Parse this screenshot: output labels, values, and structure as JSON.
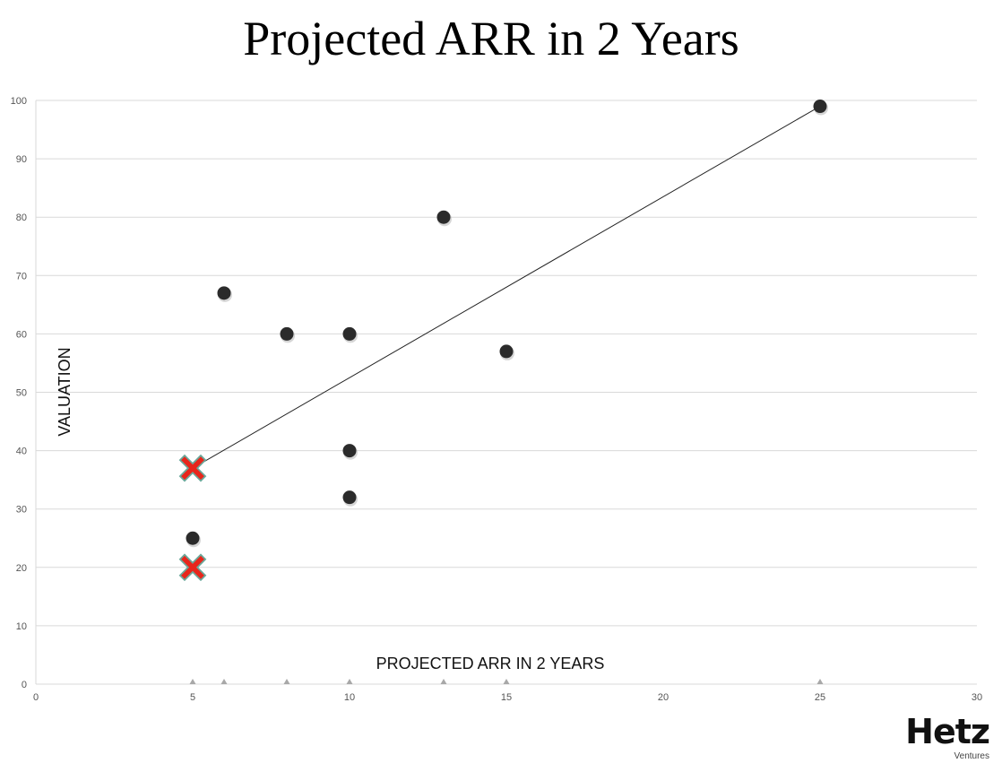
{
  "chart_data": {
    "type": "scatter",
    "title": "Projected ARR in 2 Years",
    "xlabel": "PROJECTED ARR IN 2 YEARS",
    "ylabel": "VALUATION",
    "xlim": [
      0,
      30
    ],
    "ylim": [
      0,
      100
    ],
    "x_ticks": [
      0,
      5,
      10,
      15,
      20,
      25,
      30
    ],
    "y_ticks": [
      0,
      10,
      20,
      30,
      40,
      50,
      60,
      70,
      80,
      90,
      100
    ],
    "grid": "horizontal",
    "points": [
      {
        "x": 6,
        "y": 67,
        "marker": "dot"
      },
      {
        "x": 8,
        "y": 60,
        "marker": "dot"
      },
      {
        "x": 10,
        "y": 60,
        "marker": "dot"
      },
      {
        "x": 13,
        "y": 80,
        "marker": "dot"
      },
      {
        "x": 15,
        "y": 57,
        "marker": "dot"
      },
      {
        "x": 25,
        "y": 99,
        "marker": "dot"
      },
      {
        "x": 10,
        "y": 40,
        "marker": "dot"
      },
      {
        "x": 10,
        "y": 32,
        "marker": "dot"
      },
      {
        "x": 5,
        "y": 25,
        "marker": "dot"
      },
      {
        "x": 5,
        "y": 37,
        "marker": "cross"
      },
      {
        "x": 5,
        "y": 20,
        "marker": "cross"
      }
    ],
    "trendline": [
      {
        "x": 5,
        "y": 37
      },
      {
        "x": 25,
        "y": 99
      }
    ],
    "colors": {
      "dot": "#2b2b2b",
      "cross": "#e8261c",
      "cross_outline": "#6aa89a",
      "grid": "#d9d9d9",
      "line": "#222222"
    }
  },
  "logo": {
    "name": "Hetz",
    "sub": "Ventures"
  }
}
